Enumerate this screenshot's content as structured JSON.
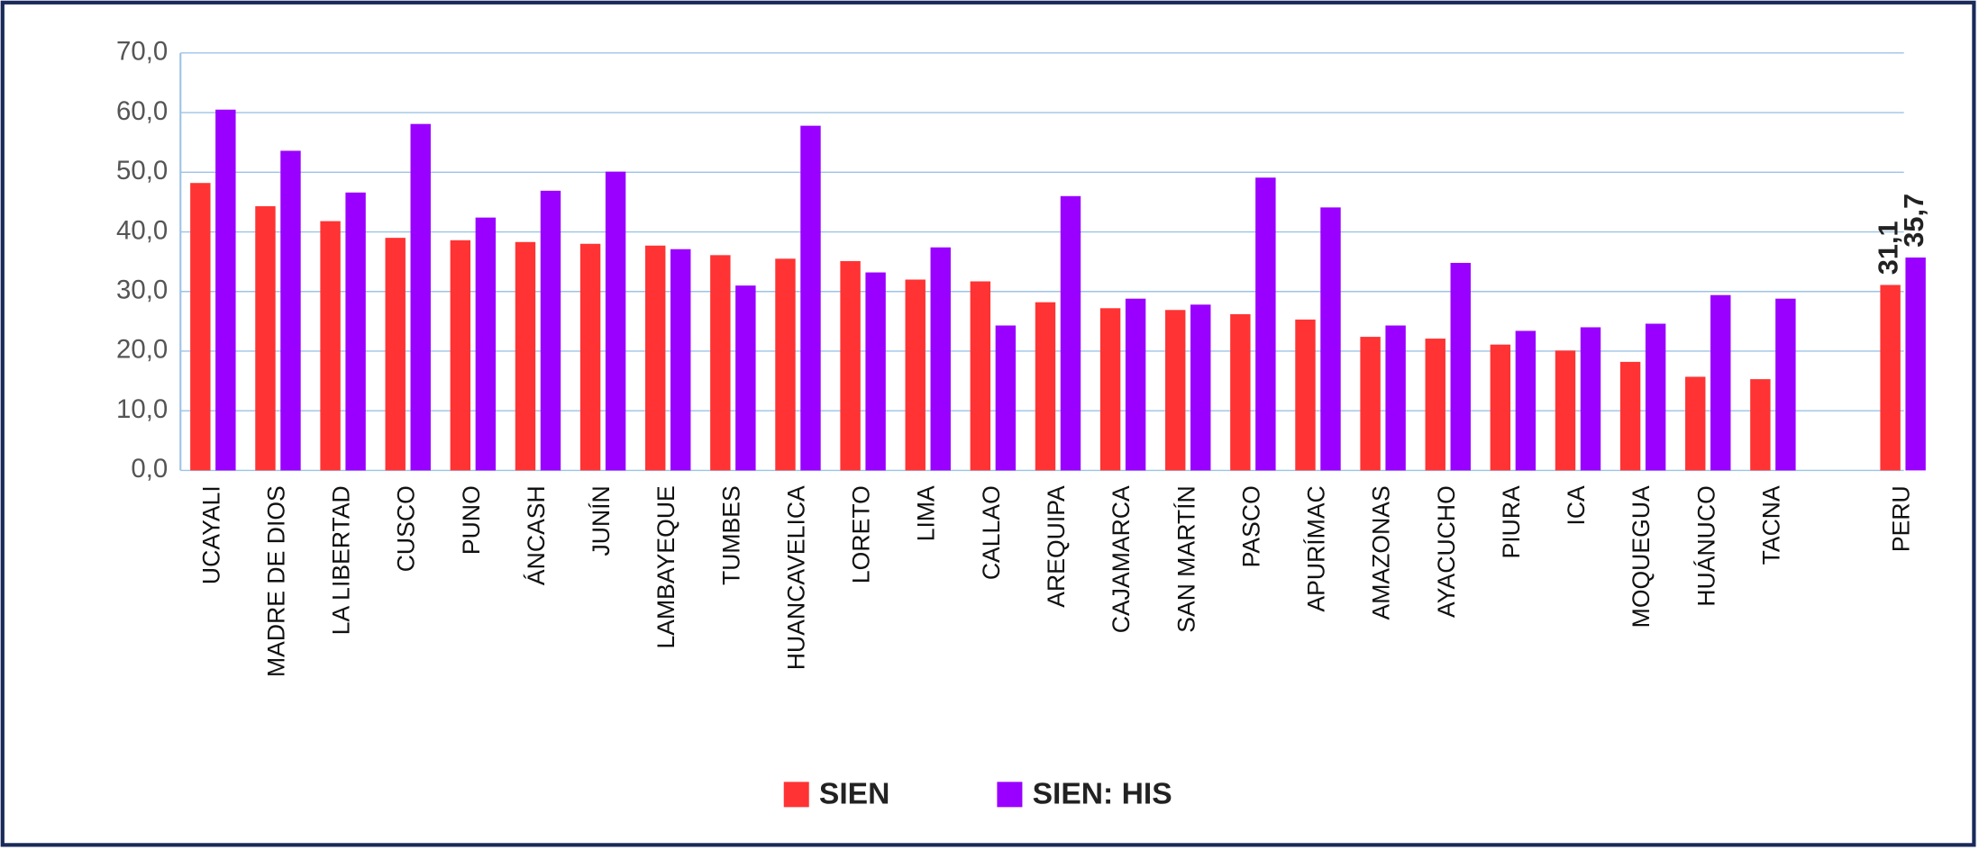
{
  "chart_data": {
    "type": "bar",
    "categories": [
      "UCAYALI",
      "MADRE DE DIOS",
      "LA LIBERTAD",
      "CUSCO",
      "PUNO",
      "ÁNCASH",
      "JUNÍN",
      "LAMBAYEQUE",
      "TUMBES",
      "HUANCAVELICA",
      "LORETO",
      "LIMA",
      "CALLAO",
      "AREQUIPA",
      "CAJAMARCA",
      "SAN MARTÍN",
      "PASCO",
      "APURÍMAC",
      "AMAZONAS",
      "AYACUCHO",
      "PIURA",
      "ICA",
      "MOQUEGUA",
      "HUÁNUCO",
      "TACNA",
      null,
      "PERU"
    ],
    "series": [
      {
        "name": "SIEN",
        "color": "#ff3333",
        "values": [
          48.2,
          44.3,
          41.8,
          39.0,
          38.6,
          38.3,
          38.0,
          37.7,
          36.1,
          35.5,
          35.1,
          32.0,
          31.7,
          28.2,
          27.2,
          26.9,
          26.2,
          25.3,
          22.4,
          22.1,
          21.1,
          20.1,
          18.2,
          15.7,
          15.3,
          null,
          31.1
        ],
        "value_labels": [
          null,
          null,
          null,
          null,
          null,
          null,
          null,
          null,
          null,
          null,
          null,
          null,
          null,
          null,
          null,
          null,
          null,
          null,
          null,
          null,
          null,
          null,
          null,
          null,
          null,
          null,
          "31,1"
        ]
      },
      {
        "name": "SIEN: HIS",
        "color": "#9900ff",
        "values": [
          60.5,
          53.6,
          46.6,
          58.1,
          42.4,
          46.9,
          50.1,
          37.1,
          31.0,
          57.8,
          33.2,
          37.4,
          24.3,
          46.0,
          28.8,
          27.8,
          49.1,
          44.1,
          24.3,
          34.8,
          23.4,
          24.0,
          24.6,
          29.4,
          28.8,
          null,
          35.7
        ],
        "value_labels": [
          null,
          null,
          null,
          null,
          null,
          null,
          null,
          null,
          null,
          null,
          null,
          null,
          null,
          null,
          null,
          null,
          null,
          null,
          null,
          null,
          null,
          null,
          null,
          null,
          null,
          null,
          "35,7"
        ]
      }
    ],
    "ylim": [
      0,
      70
    ],
    "yticks": [
      {
        "value": 0,
        "label": "0,0"
      },
      {
        "value": 10,
        "label": "10,0"
      },
      {
        "value": 20,
        "label": "20,0"
      },
      {
        "value": 30,
        "label": "30,0"
      },
      {
        "value": 40,
        "label": "40,0"
      },
      {
        "value": 50,
        "label": "50,0"
      },
      {
        "value": 60,
        "label": "60,0"
      },
      {
        "value": 70,
        "label": "70,0"
      }
    ],
    "grid": true,
    "legend": "bottom"
  }
}
